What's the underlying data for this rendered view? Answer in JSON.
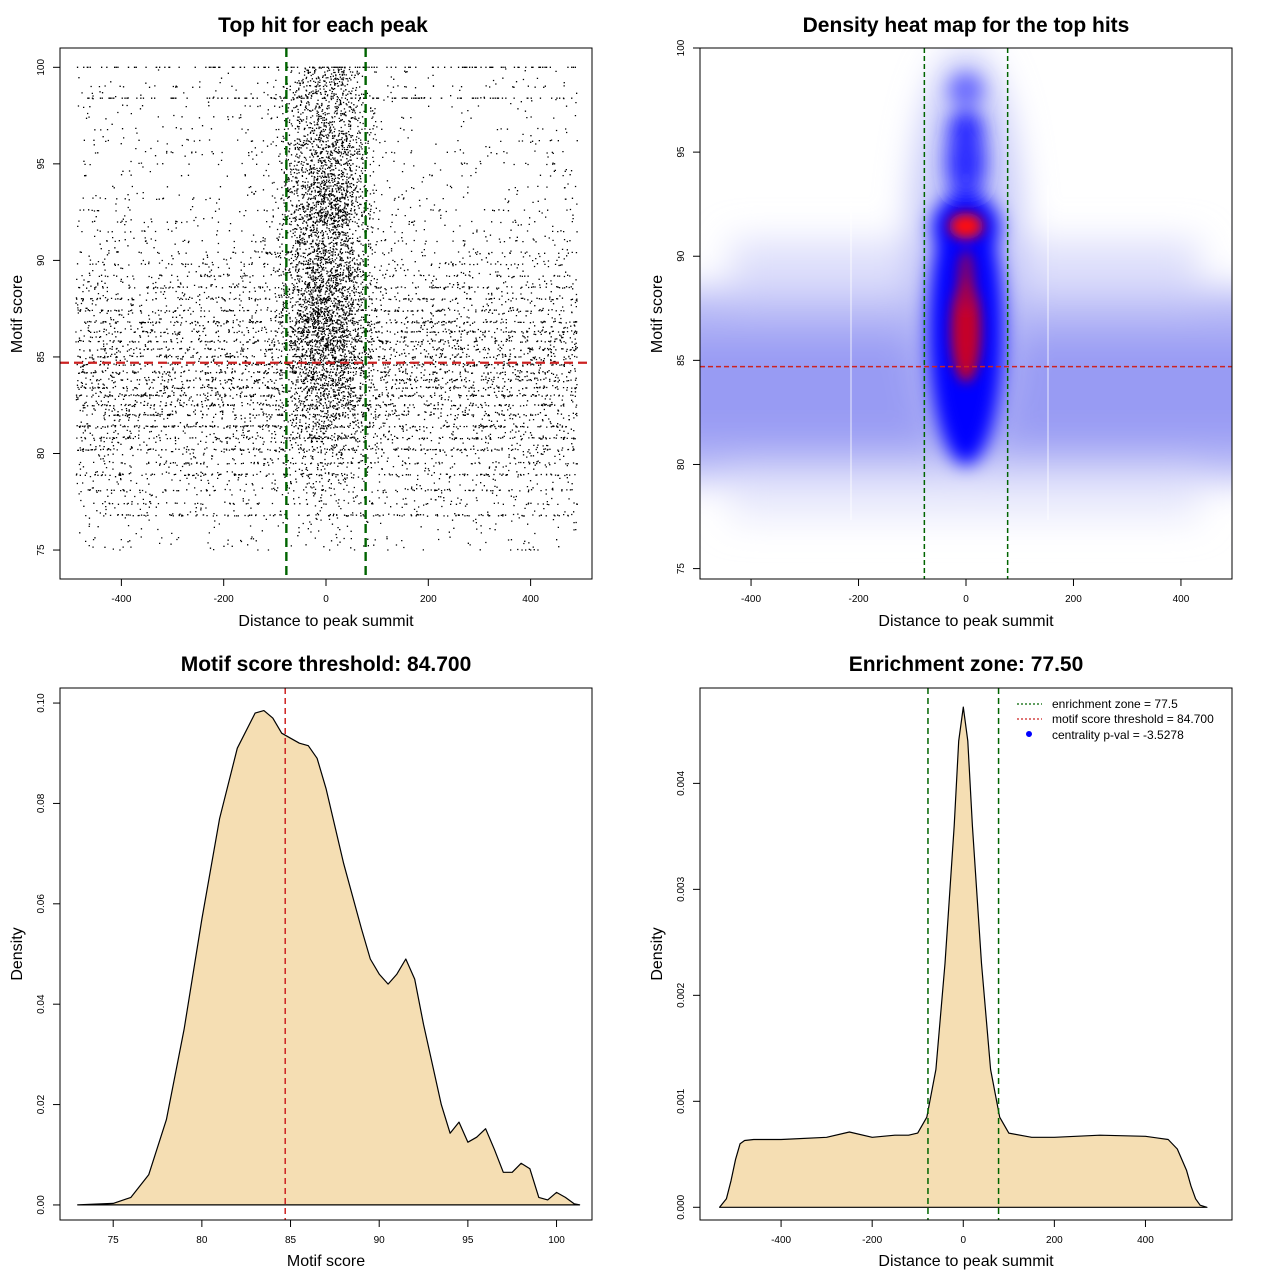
{
  "chart_data": [
    {
      "id": "scatter",
      "type": "scatter",
      "title": "Top hit for each peak",
      "xlabel": "Distance to peak summit",
      "ylabel": "Motif score",
      "xlim": [
        -520,
        520
      ],
      "ylim": [
        73.5,
        101
      ],
      "xticks": [
        -400,
        -200,
        0,
        200,
        400
      ],
      "yticks": [
        75,
        80,
        85,
        90,
        95,
        100
      ],
      "vlines": [
        -77.5,
        77.5
      ],
      "hline": 84.7,
      "colors": {
        "points": "#000000",
        "vline": "#006400",
        "hline": "#cc2222"
      }
    },
    {
      "id": "heatmap",
      "type": "heatmap",
      "title": "Density heat map for the top hits",
      "xlabel": "Distance to peak summit",
      "ylabel": "Motif score",
      "xlim": [
        -495,
        495
      ],
      "ylim": [
        74.5,
        100
      ],
      "xticks": [
        -400,
        -200,
        0,
        200,
        400
      ],
      "yticks": [
        75,
        80,
        85,
        90,
        95,
        100
      ],
      "vlines": [
        -77.5,
        77.5
      ],
      "hline": 84.7,
      "colors": {
        "low": "#ffffff",
        "mid": "#0000ff",
        "high": "#ff0000",
        "vline": "#006400",
        "hline": "#cc2222"
      }
    },
    {
      "id": "score-density",
      "type": "area",
      "title": "Motif score threshold: 84.700",
      "xlabel": "Motif score",
      "ylabel": "Density",
      "xlim": [
        72,
        102
      ],
      "ylim": [
        -0.003,
        0.103
      ],
      "xticks": [
        75,
        80,
        85,
        90,
        95,
        100
      ],
      "yticks": [
        0.0,
        0.02,
        0.04,
        0.06,
        0.08,
        0.1
      ],
      "ytick_labels": [
        "0.00",
        "0.02",
        "0.04",
        "0.06",
        "0.08",
        "0.10"
      ],
      "vlines": [
        84.7
      ],
      "x": [
        73,
        75,
        76,
        77,
        78,
        79,
        80,
        81,
        82,
        83,
        83.5,
        84,
        84.5,
        85,
        85.5,
        86,
        86.5,
        87,
        88,
        89,
        89.5,
        90,
        90.5,
        91,
        91.5,
        92,
        92.5,
        93,
        93.5,
        94,
        94.5,
        95,
        95.5,
        96,
        96.5,
        97,
        97.5,
        98,
        98.5,
        99,
        99.5,
        100,
        100.5,
        101,
        101.3
      ],
      "y": [
        0.0,
        0.0003,
        0.0015,
        0.006,
        0.017,
        0.035,
        0.057,
        0.077,
        0.091,
        0.098,
        0.0985,
        0.097,
        0.094,
        0.093,
        0.092,
        0.0915,
        0.089,
        0.083,
        0.068,
        0.055,
        0.049,
        0.046,
        0.044,
        0.046,
        0.049,
        0.045,
        0.036,
        0.028,
        0.02,
        0.0143,
        0.0165,
        0.0125,
        0.0135,
        0.0152,
        0.011,
        0.0065,
        0.0065,
        0.0083,
        0.0072,
        0.0015,
        0.001,
        0.0025,
        0.0015,
        0.0002,
        0.0
      ],
      "colors": {
        "fill": "#f5deb3",
        "line": "#000000",
        "vline": "#cc2222"
      }
    },
    {
      "id": "distance-density",
      "type": "area",
      "title": "Enrichment zone: 77.50",
      "xlabel": "Distance to peak summit",
      "ylabel": "Density",
      "xlim": [
        -578,
        590
      ],
      "ylim": [
        -0.00012,
        0.0049
      ],
      "xticks": [
        -400,
        -200,
        0,
        200,
        400
      ],
      "yticks": [
        0.0,
        0.001,
        0.002,
        0.003,
        0.004
      ],
      "ytick_labels": [
        "0.000",
        "0.001",
        "0.002",
        "0.003",
        "0.004"
      ],
      "vlines": [
        -77.5,
        77.5
      ],
      "x": [
        -535,
        -520,
        -510,
        -500,
        -490,
        -480,
        -460,
        -400,
        -300,
        -250,
        -200,
        -150,
        -120,
        -100,
        -80,
        -60,
        -40,
        -20,
        -10,
        0,
        10,
        20,
        40,
        60,
        80,
        100,
        150,
        200,
        300,
        400,
        450,
        470,
        490,
        500,
        510,
        520,
        535
      ],
      "y": [
        0.0,
        8e-05,
        0.00025,
        0.00045,
        0.0006,
        0.00063,
        0.00064,
        0.00064,
        0.00066,
        0.00071,
        0.00066,
        0.00068,
        0.00068,
        0.0007,
        0.00085,
        0.0013,
        0.0023,
        0.0036,
        0.0044,
        0.00472,
        0.0044,
        0.0036,
        0.0023,
        0.0013,
        0.00085,
        0.0007,
        0.00066,
        0.00066,
        0.00068,
        0.00067,
        0.00064,
        0.00055,
        0.00035,
        0.0002,
        8e-05,
        2e-05,
        0.0
      ],
      "legend": [
        {
          "label": "enrichment zone = 77.5",
          "color": "#006400",
          "marker": "dotted-line"
        },
        {
          "label": "motif score threshold = 84.700",
          "color": "#cc2222",
          "marker": "dotted-line"
        },
        {
          "label": "centrality p-val = -3.5278",
          "color": "#0000ff",
          "marker": "point"
        }
      ],
      "legend_position": "top-right",
      "colors": {
        "fill": "#f5deb3",
        "line": "#000000",
        "vline": "#006400"
      }
    }
  ]
}
